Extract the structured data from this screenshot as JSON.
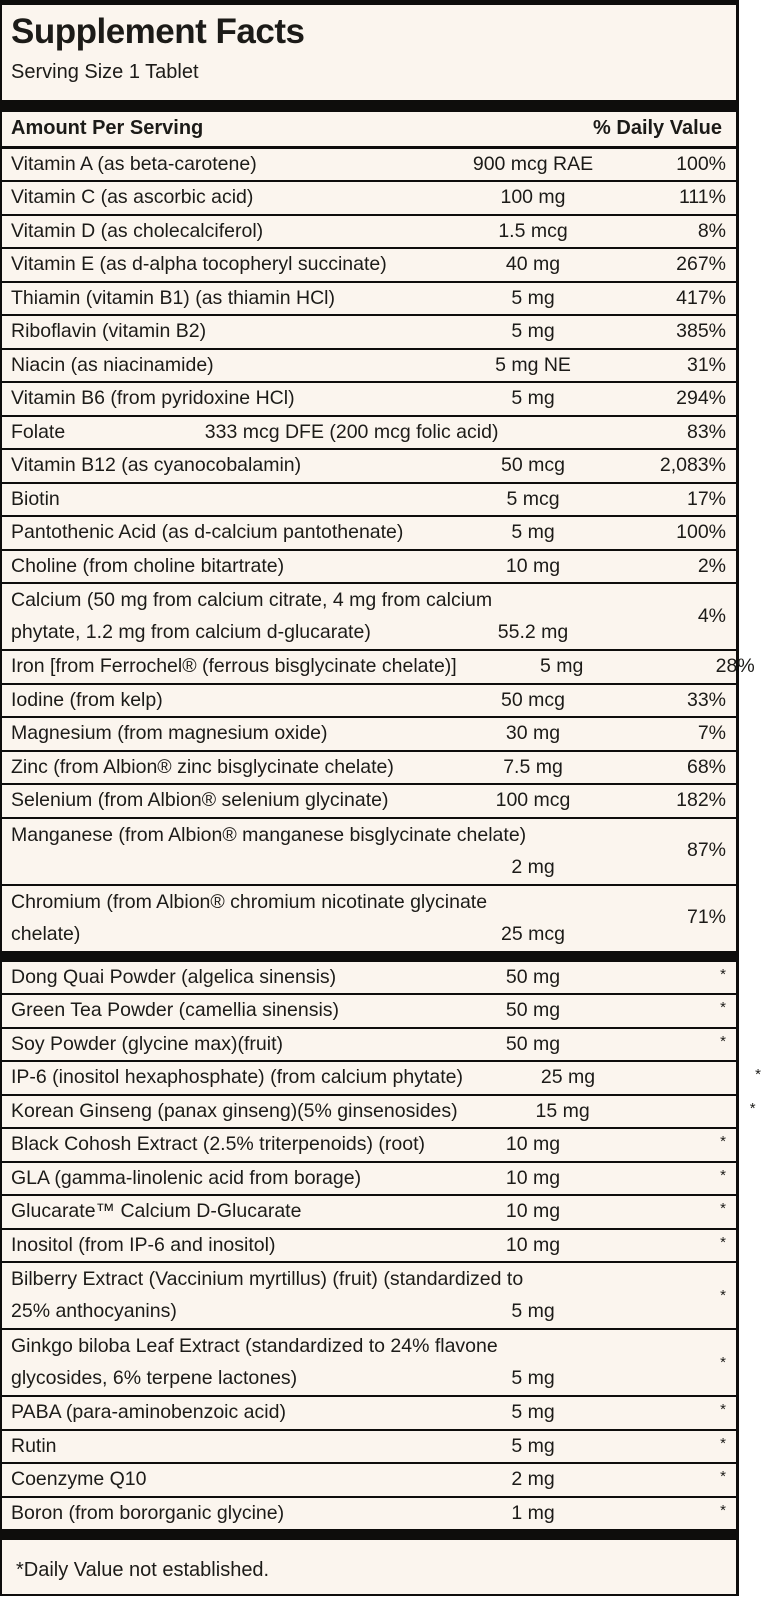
{
  "label": {
    "title": "Supplement Facts",
    "serving_size": "Serving Size 1 Tablet",
    "columns": {
      "amount": "Amount Per Serving",
      "daily_value": "% Daily Value"
    },
    "footnote": "*Daily Value not established.",
    "colors": {
      "background": "#FBF5EE",
      "text": "#1C1B18",
      "rule": "#0E0D0C"
    },
    "sections": [
      {
        "name": "vitamins-and-minerals",
        "rows": [
          {
            "name": "Vitamin A (as beta-carotene)",
            "amount": "900 mcg RAE",
            "dv": "100%"
          },
          {
            "name": "Vitamin C (as ascorbic acid)",
            "amount": "100 mg",
            "dv": "111%"
          },
          {
            "name": "Vitamin D (as cholecalciferol)",
            "amount": "1.5 mcg",
            "dv": "8%"
          },
          {
            "name": "Vitamin E (as d-alpha tocopheryl succinate)",
            "amount": "40 mg",
            "dv": "267%"
          },
          {
            "name": "Thiamin (vitamin B1) (as thiamin HCl)",
            "amount": "5 mg",
            "dv": "417%"
          },
          {
            "name": "Riboflavin (vitamin B2)",
            "amount": "5 mg",
            "dv": "385%"
          },
          {
            "name": "Niacin (as niacinamide)",
            "amount": "5 mg NE",
            "dv": "31%"
          },
          {
            "name": "Vitamin B6 (from pyridoxine HCl)",
            "amount": "5 mg",
            "dv": "294%"
          },
          {
            "name": "Folate",
            "amount": "333 mcg DFE (200 mcg folic acid)",
            "dv": "83%",
            "layout": "wide-amount"
          },
          {
            "name": "Vitamin B12 (as cyanocobalamin)",
            "amount": "50 mcg",
            "dv": "2,083%"
          },
          {
            "name": "Biotin",
            "amount": "5 mcg",
            "dv": "17%"
          },
          {
            "name": "Pantothenic Acid (as d-calcium pantothenate)",
            "amount": "5 mg",
            "dv": "100%"
          },
          {
            "name": "Choline (from choline bitartrate)",
            "amount": "10 mg",
            "dv": "2%"
          },
          {
            "name": "Calcium (50 mg from calcium citrate, 4 mg from calcium",
            "name2": "phytate, 1.2 mg from calcium d-glucarate)",
            "amount": "55.2 mg",
            "dv": "4%",
            "layout": "two-line"
          },
          {
            "name": "Iron [from Ferrochel® (ferrous bisglycinate chelate)]",
            "amount": "5 mg",
            "dv": "28%"
          },
          {
            "name": "Iodine (from kelp)",
            "amount": "50 mcg",
            "dv": "33%"
          },
          {
            "name": "Magnesium (from magnesium oxide)",
            "amount": "30 mg",
            "dv": "7%"
          },
          {
            "name": "Zinc (from Albion® zinc bisglycinate chelate)",
            "amount": "7.5 mg",
            "dv": "68%"
          },
          {
            "name": "Selenium (from Albion® selenium glycinate)",
            "amount": "100 mcg",
            "dv": "182%"
          },
          {
            "name": "Manganese (from Albion® manganese bisglycinate chelate)",
            "name2": "",
            "amount": "2 mg",
            "dv": "87%",
            "layout": "two-line"
          },
          {
            "name": "Chromium (from Albion® chromium nicotinate glycinate",
            "name2": "chelate)",
            "amount": "25 mcg",
            "dv": "71%",
            "layout": "two-line"
          }
        ]
      },
      {
        "name": "botanicals-and-others",
        "rows": [
          {
            "name": "Dong Quai Powder (algelica sinensis)",
            "amount": "50 mg",
            "dv": "*"
          },
          {
            "name": "Green Tea Powder (camellia sinensis)",
            "amount": "50 mg",
            "dv": "*"
          },
          {
            "name": "Soy Powder (glycine max)(fruit)",
            "amount": "50 mg",
            "dv": "*"
          },
          {
            "name": "IP-6 (inositol hexaphosphate) (from calcium phytate)",
            "amount": "25 mg",
            "dv": "*"
          },
          {
            "name": "Korean Ginseng (panax ginseng)(5% ginsenosides)",
            "amount": "15 mg",
            "dv": "*"
          },
          {
            "name": "Black Cohosh Extract (2.5% triterpenoids) (root)",
            "amount": "10 mg",
            "dv": "*"
          },
          {
            "name": "GLA (gamma-linolenic acid from borage)",
            "amount": "10 mg",
            "dv": "*"
          },
          {
            "name": "Glucarate™ Calcium D-Glucarate",
            "amount": "10 mg",
            "dv": "*"
          },
          {
            "name": "Inositol (from IP-6 and inositol)",
            "amount": "10 mg",
            "dv": "*"
          },
          {
            "name": "Bilberry Extract (Vaccinium myrtillus) (fruit) (standardized to",
            "name2": "25% anthocyanins)",
            "amount": "5 mg",
            "dv": "*",
            "layout": "two-line"
          },
          {
            "name": "Ginkgo biloba Leaf Extract (standardized to 24% flavone",
            "name2": "glycosides, 6% terpene lactones)",
            "amount": "5 mg",
            "dv": "*",
            "layout": "two-line"
          },
          {
            "name": "PABA (para-aminobenzoic acid)",
            "amount": "5 mg",
            "dv": "*"
          },
          {
            "name": "Rutin",
            "amount": "5 mg",
            "dv": "*"
          },
          {
            "name": "Coenzyme Q10",
            "amount": "2 mg",
            "dv": "*"
          },
          {
            "name": "Boron (from bororganic glycine)",
            "amount": "1 mg",
            "dv": "*"
          }
        ]
      }
    ]
  }
}
